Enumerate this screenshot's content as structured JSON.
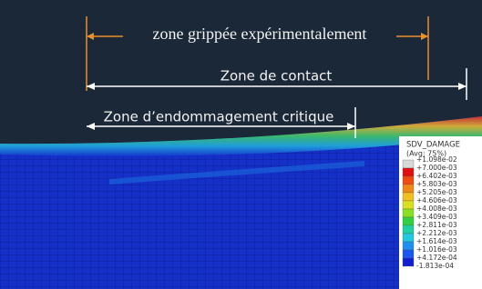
{
  "annotations": {
    "gripped_zone": "zone grippée expérimentalement",
    "contact_zone": "Zone de contact",
    "critical_damage_zone": "Zone d’endommagement critique"
  },
  "legend": {
    "title": "SDV_DAMAGE",
    "subtitle": "(Avg: 75%)",
    "labels": [
      "+1.098e-02",
      "+7.000e-03",
      "+6.402e-03",
      "+5.803e-03",
      "+5.205e-03",
      "+4.606e-03",
      "+4.008e-03",
      "+3.409e-03",
      "+2.811e-03",
      "+2.212e-03",
      "+1.614e-03",
      "+1.016e-03",
      "+4.172e-04",
      "-1.813e-04"
    ]
  }
}
